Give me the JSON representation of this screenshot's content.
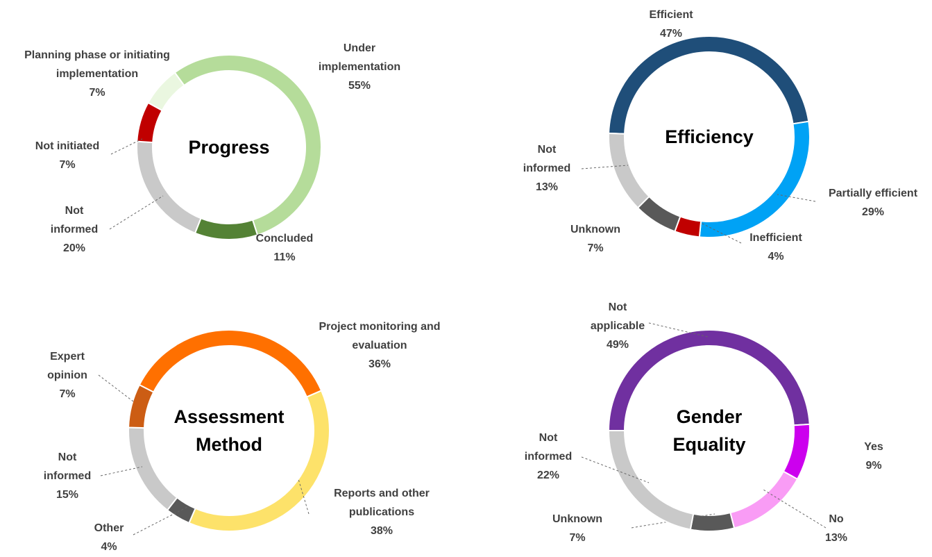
{
  "chart_data": [
    {
      "type": "donut",
      "title": "Progress",
      "categories": [
        "Under implementation",
        "Concluded",
        "Not informed",
        "Not initiated",
        "Planning phase or initiating implementation"
      ],
      "values": [
        55,
        11,
        20,
        7,
        7
      ],
      "value_labels": [
        "55%",
        "11%",
        "20%",
        "7%",
        "7%"
      ],
      "colors": [
        "#b5dc9a",
        "#548235",
        "#c9c9c9",
        "#c00000",
        "#eaf7e0"
      ]
    },
    {
      "type": "donut",
      "title": "Efficiency",
      "categories": [
        "Efficient",
        "Partially efficient",
        "Inefficient",
        "Unknown",
        "Not informed"
      ],
      "values": [
        47,
        29,
        4,
        7,
        13
      ],
      "value_labels": [
        "47%",
        "29%",
        "4%",
        "7%",
        "13%"
      ],
      "colors": [
        "#1f4e79",
        "#00a2f5",
        "#c00000",
        "#595959",
        "#c9c9c9"
      ]
    },
    {
      "type": "donut",
      "title": "Assessment Method",
      "categories": [
        "Project monitoring and evaluation",
        "Reports and other publications",
        "Other",
        "Not informed",
        "Expert opinion"
      ],
      "values": [
        36,
        38,
        4,
        15,
        7
      ],
      "value_labels": [
        "36%",
        "38%",
        "4%",
        "15%",
        "7%"
      ],
      "colors": [
        "#ff7000",
        "#fde26a",
        "#595959",
        "#c9c9c9",
        "#cc5d14"
      ]
    },
    {
      "type": "donut",
      "title": "Gender Equality",
      "categories": [
        "Not applicable",
        "Yes",
        "No",
        "Unknown",
        "Not informed"
      ],
      "values": [
        49,
        9,
        13,
        7,
        22
      ],
      "value_labels": [
        "49%",
        "9%",
        "13%",
        "7%",
        "22%"
      ],
      "colors": [
        "#7030a0",
        "#cc00ee",
        "#f99cf5",
        "#595959",
        "#c9c9c9"
      ]
    }
  ]
}
